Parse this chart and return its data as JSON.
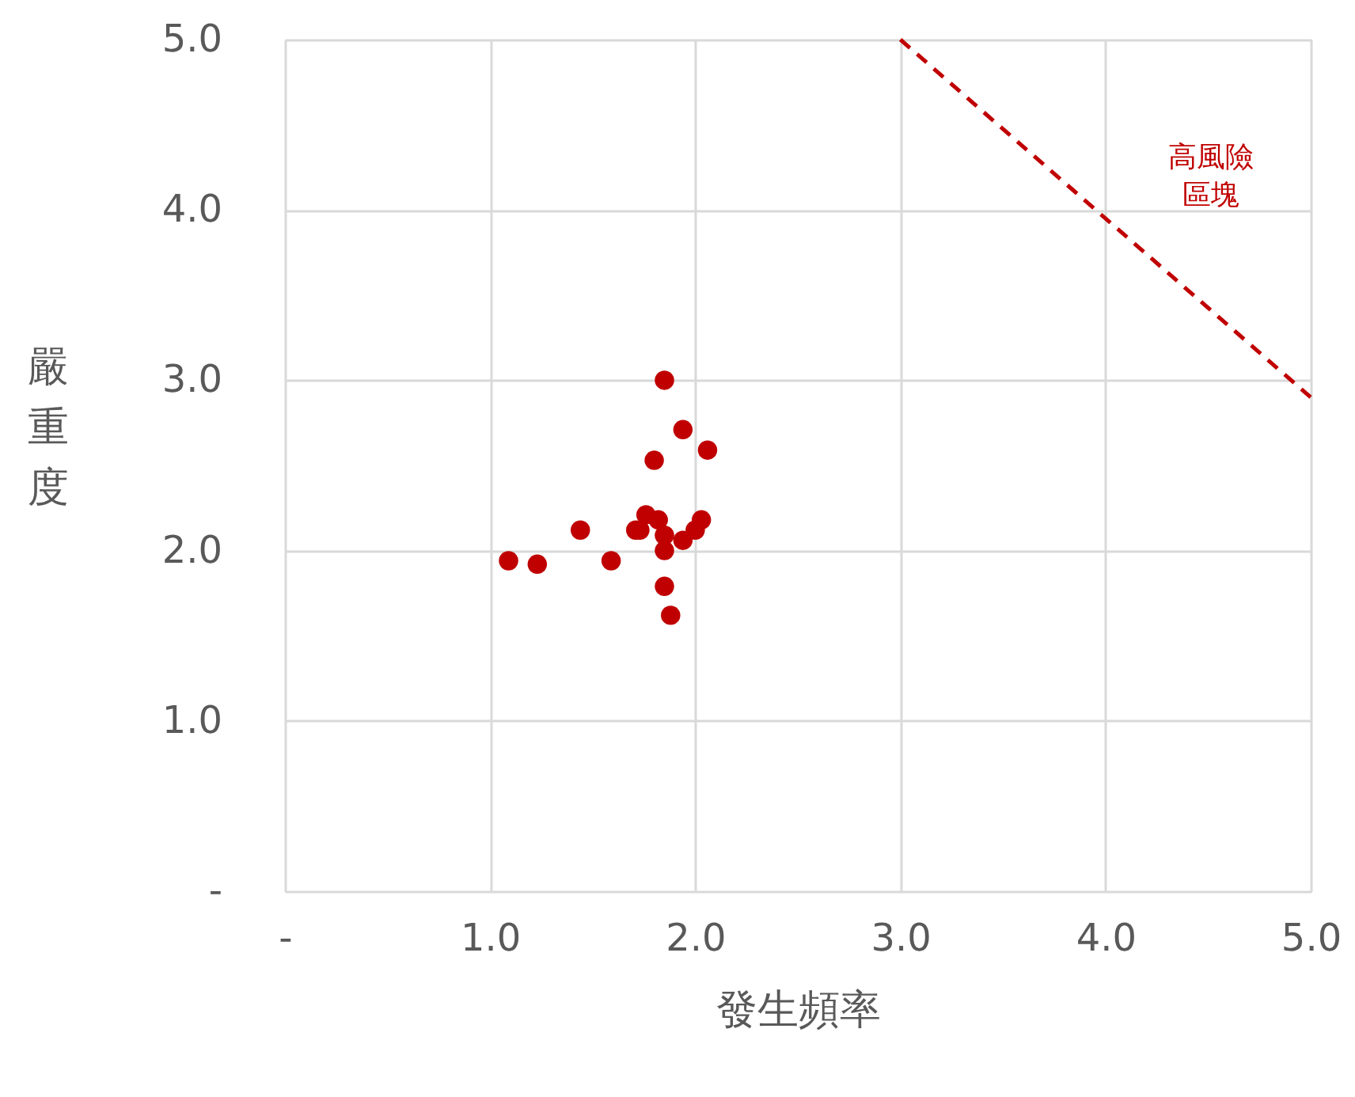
{
  "chart_data": {
    "type": "scatter",
    "xlabel": "發生頻率",
    "ylabel": "嚴重度",
    "xlim": [
      0,
      5
    ],
    "ylim": [
      0,
      5
    ],
    "xticks": [
      {
        "value": 0,
        "label": "-"
      },
      {
        "value": 1,
        "label": "1.0"
      },
      {
        "value": 2,
        "label": "2.0"
      },
      {
        "value": 3,
        "label": "3.0"
      },
      {
        "value": 4,
        "label": "4.0"
      },
      {
        "value": 5,
        "label": "5.0"
      }
    ],
    "yticks": [
      {
        "value": 0,
        "label": "-"
      },
      {
        "value": 1,
        "label": "1.0"
      },
      {
        "value": 2,
        "label": "2.0"
      },
      {
        "value": 3,
        "label": "3.0"
      },
      {
        "value": 4,
        "label": "4.0"
      },
      {
        "value": 5,
        "label": "5.0"
      }
    ],
    "grid": true,
    "series": [
      {
        "marker": "circle",
        "color": "#c00000",
        "x": [
          1.85,
          1.94,
          2.06,
          1.8,
          1.44,
          1.09,
          1.23,
          1.59,
          1.76,
          1.82,
          1.71,
          1.73,
          1.85,
          1.85,
          1.94,
          2.0,
          2.03,
          1.85,
          1.88
        ],
        "values": [
          3.0,
          2.71,
          2.59,
          2.53,
          2.12,
          1.94,
          1.92,
          1.94,
          2.21,
          2.18,
          2.12,
          2.12,
          2.09,
          2.0,
          2.06,
          2.12,
          2.18,
          1.79,
          1.62
        ]
      },
      {
        "type": "line",
        "color": "#c00000",
        "line_style": "dashed",
        "x": [
          3,
          5
        ],
        "values": [
          5,
          2.9
        ]
      }
    ],
    "annotations": [
      "高風險區塊"
    ]
  }
}
